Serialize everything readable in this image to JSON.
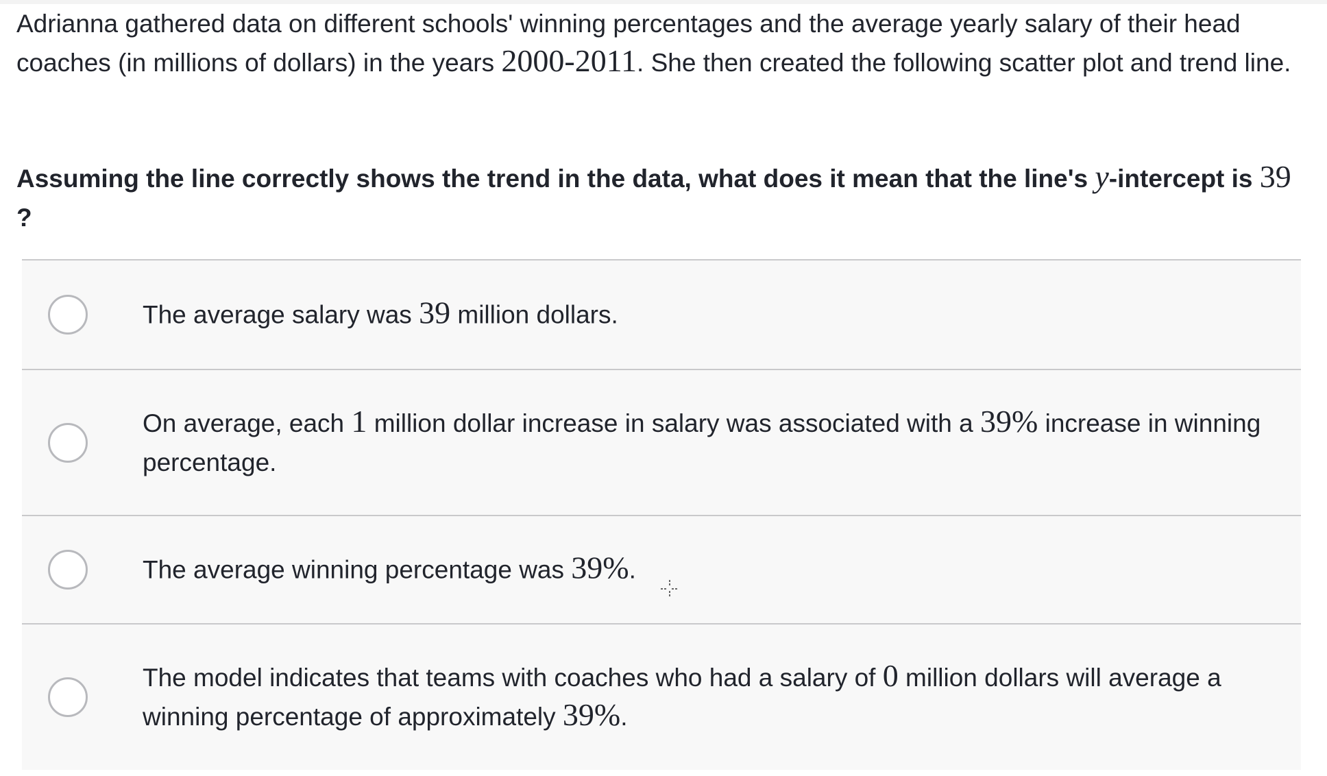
{
  "intro": {
    "part1": "Adrianna gathered data on different schools' winning percentages and the average yearly salary of their head coaches (in millions of dollars) in the years ",
    "years": "2000-2011",
    "part2": ". She then created the following scatter plot and trend line."
  },
  "question": {
    "part1": "Assuming the line correctly shows the trend in the data, what does it mean that the line's ",
    "variable": "y",
    "part2": "-intercept is ",
    "value": "39",
    "part3": "?"
  },
  "choices": [
    {
      "pre": "The average salary was ",
      "math1": "39",
      "post": " million dollars."
    },
    {
      "pre": "On average, each ",
      "math1": "1",
      "mid": " million dollar increase in salary was associated with a ",
      "math2": "39%",
      "post": " increase in winning percentage."
    },
    {
      "pre": "The average winning percentage was ",
      "math1": "39%",
      "post": "."
    },
    {
      "pre": "The model indicates that teams with coaches who had a salary of ",
      "math1": "0",
      "mid": " million dollars will average a winning percentage of approximately ",
      "math2": "39%",
      "post": "."
    }
  ],
  "icons": {
    "radio": "radio-button-icon",
    "cursor": "crosshair-cursor-icon"
  },
  "colors": {
    "text": "#21242c",
    "choice_background": "#f8f8f8",
    "divider": "#c9c9cb",
    "radio_border": "#b8b9bd"
  }
}
